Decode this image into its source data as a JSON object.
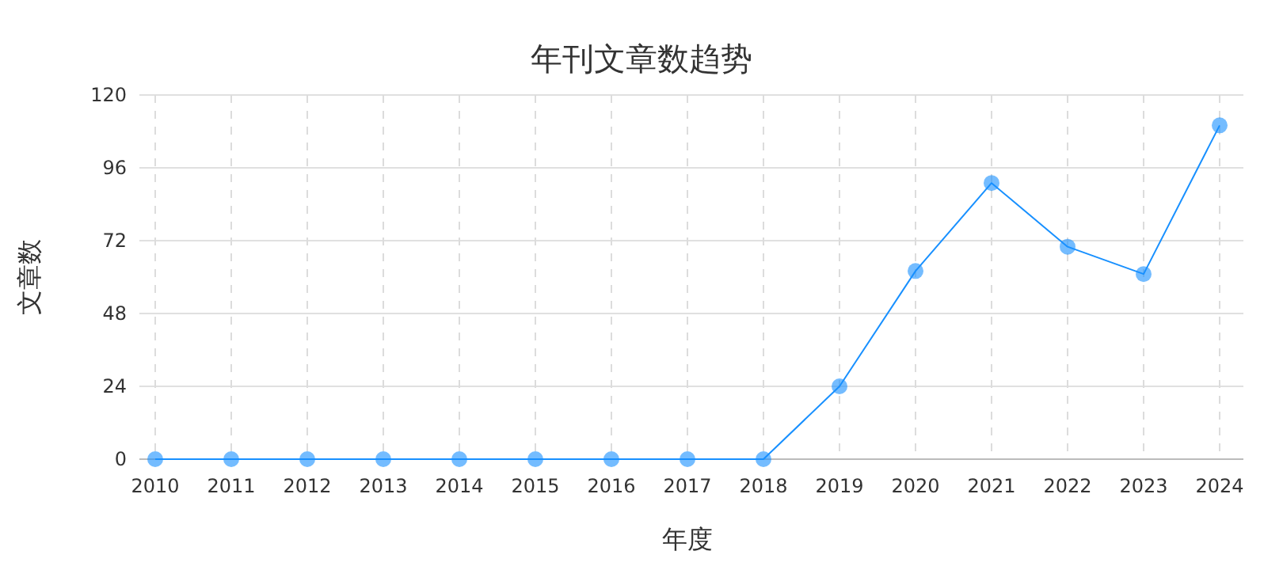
{
  "chart_data": {
    "type": "line",
    "title": "年刊文章数趋势",
    "xlabel": "年度",
    "ylabel": "文章数",
    "categories": [
      "2010",
      "2011",
      "2012",
      "2013",
      "2014",
      "2015",
      "2016",
      "2017",
      "2018",
      "2019",
      "2020",
      "2021",
      "2022",
      "2023",
      "2024"
    ],
    "series": [
      {
        "color": "#1890ff",
        "values": [
          0,
          0,
          0,
          0,
          0,
          0,
          0,
          0,
          0,
          24,
          62,
          91,
          70,
          61,
          110
        ]
      }
    ],
    "ylim": [
      0,
      120
    ],
    "yticks": [
      0,
      24,
      48,
      72,
      96,
      120
    ],
    "grid": true,
    "marker": "circle",
    "line_style": "solid"
  }
}
